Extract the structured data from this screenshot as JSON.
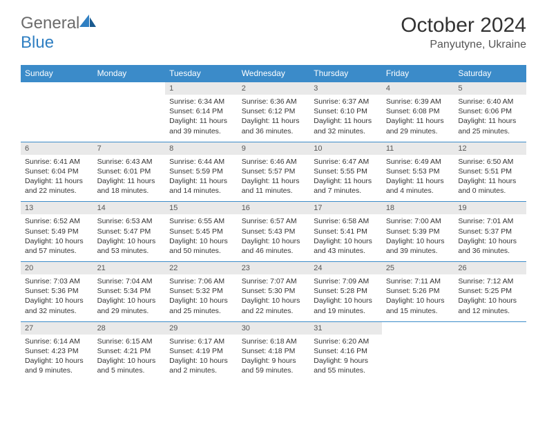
{
  "brand": {
    "name_g": "General",
    "name_b": "Blue"
  },
  "title": "October 2024",
  "location": "Panyutyne, Ukraine",
  "colors": {
    "header_bg": "#3b8bc9",
    "header_text": "#ffffff",
    "daynum_bg": "#e9e9e9",
    "border": "#3b8bc9"
  },
  "day_names": [
    "Sunday",
    "Monday",
    "Tuesday",
    "Wednesday",
    "Thursday",
    "Friday",
    "Saturday"
  ],
  "weeks": [
    [
      null,
      null,
      {
        "n": "1",
        "sr": "6:34 AM",
        "ss": "6:14 PM",
        "dl": "11 hours and 39 minutes."
      },
      {
        "n": "2",
        "sr": "6:36 AM",
        "ss": "6:12 PM",
        "dl": "11 hours and 36 minutes."
      },
      {
        "n": "3",
        "sr": "6:37 AM",
        "ss": "6:10 PM",
        "dl": "11 hours and 32 minutes."
      },
      {
        "n": "4",
        "sr": "6:39 AM",
        "ss": "6:08 PM",
        "dl": "11 hours and 29 minutes."
      },
      {
        "n": "5",
        "sr": "6:40 AM",
        "ss": "6:06 PM",
        "dl": "11 hours and 25 minutes."
      }
    ],
    [
      {
        "n": "6",
        "sr": "6:41 AM",
        "ss": "6:04 PM",
        "dl": "11 hours and 22 minutes."
      },
      {
        "n": "7",
        "sr": "6:43 AM",
        "ss": "6:01 PM",
        "dl": "11 hours and 18 minutes."
      },
      {
        "n": "8",
        "sr": "6:44 AM",
        "ss": "5:59 PM",
        "dl": "11 hours and 14 minutes."
      },
      {
        "n": "9",
        "sr": "6:46 AM",
        "ss": "5:57 PM",
        "dl": "11 hours and 11 minutes."
      },
      {
        "n": "10",
        "sr": "6:47 AM",
        "ss": "5:55 PM",
        "dl": "11 hours and 7 minutes."
      },
      {
        "n": "11",
        "sr": "6:49 AM",
        "ss": "5:53 PM",
        "dl": "11 hours and 4 minutes."
      },
      {
        "n": "12",
        "sr": "6:50 AM",
        "ss": "5:51 PM",
        "dl": "11 hours and 0 minutes."
      }
    ],
    [
      {
        "n": "13",
        "sr": "6:52 AM",
        "ss": "5:49 PM",
        "dl": "10 hours and 57 minutes."
      },
      {
        "n": "14",
        "sr": "6:53 AM",
        "ss": "5:47 PM",
        "dl": "10 hours and 53 minutes."
      },
      {
        "n": "15",
        "sr": "6:55 AM",
        "ss": "5:45 PM",
        "dl": "10 hours and 50 minutes."
      },
      {
        "n": "16",
        "sr": "6:57 AM",
        "ss": "5:43 PM",
        "dl": "10 hours and 46 minutes."
      },
      {
        "n": "17",
        "sr": "6:58 AM",
        "ss": "5:41 PM",
        "dl": "10 hours and 43 minutes."
      },
      {
        "n": "18",
        "sr": "7:00 AM",
        "ss": "5:39 PM",
        "dl": "10 hours and 39 minutes."
      },
      {
        "n": "19",
        "sr": "7:01 AM",
        "ss": "5:37 PM",
        "dl": "10 hours and 36 minutes."
      }
    ],
    [
      {
        "n": "20",
        "sr": "7:03 AM",
        "ss": "5:36 PM",
        "dl": "10 hours and 32 minutes."
      },
      {
        "n": "21",
        "sr": "7:04 AM",
        "ss": "5:34 PM",
        "dl": "10 hours and 29 minutes."
      },
      {
        "n": "22",
        "sr": "7:06 AM",
        "ss": "5:32 PM",
        "dl": "10 hours and 25 minutes."
      },
      {
        "n": "23",
        "sr": "7:07 AM",
        "ss": "5:30 PM",
        "dl": "10 hours and 22 minutes."
      },
      {
        "n": "24",
        "sr": "7:09 AM",
        "ss": "5:28 PM",
        "dl": "10 hours and 19 minutes."
      },
      {
        "n": "25",
        "sr": "7:11 AM",
        "ss": "5:26 PM",
        "dl": "10 hours and 15 minutes."
      },
      {
        "n": "26",
        "sr": "7:12 AM",
        "ss": "5:25 PM",
        "dl": "10 hours and 12 minutes."
      }
    ],
    [
      {
        "n": "27",
        "sr": "6:14 AM",
        "ss": "4:23 PM",
        "dl": "10 hours and 9 minutes."
      },
      {
        "n": "28",
        "sr": "6:15 AM",
        "ss": "4:21 PM",
        "dl": "10 hours and 5 minutes."
      },
      {
        "n": "29",
        "sr": "6:17 AM",
        "ss": "4:19 PM",
        "dl": "10 hours and 2 minutes."
      },
      {
        "n": "30",
        "sr": "6:18 AM",
        "ss": "4:18 PM",
        "dl": "9 hours and 59 minutes."
      },
      {
        "n": "31",
        "sr": "6:20 AM",
        "ss": "4:16 PM",
        "dl": "9 hours and 55 minutes."
      },
      null,
      null
    ]
  ],
  "labels": {
    "sunrise": "Sunrise:",
    "sunset": "Sunset:",
    "daylight": "Daylight:"
  }
}
